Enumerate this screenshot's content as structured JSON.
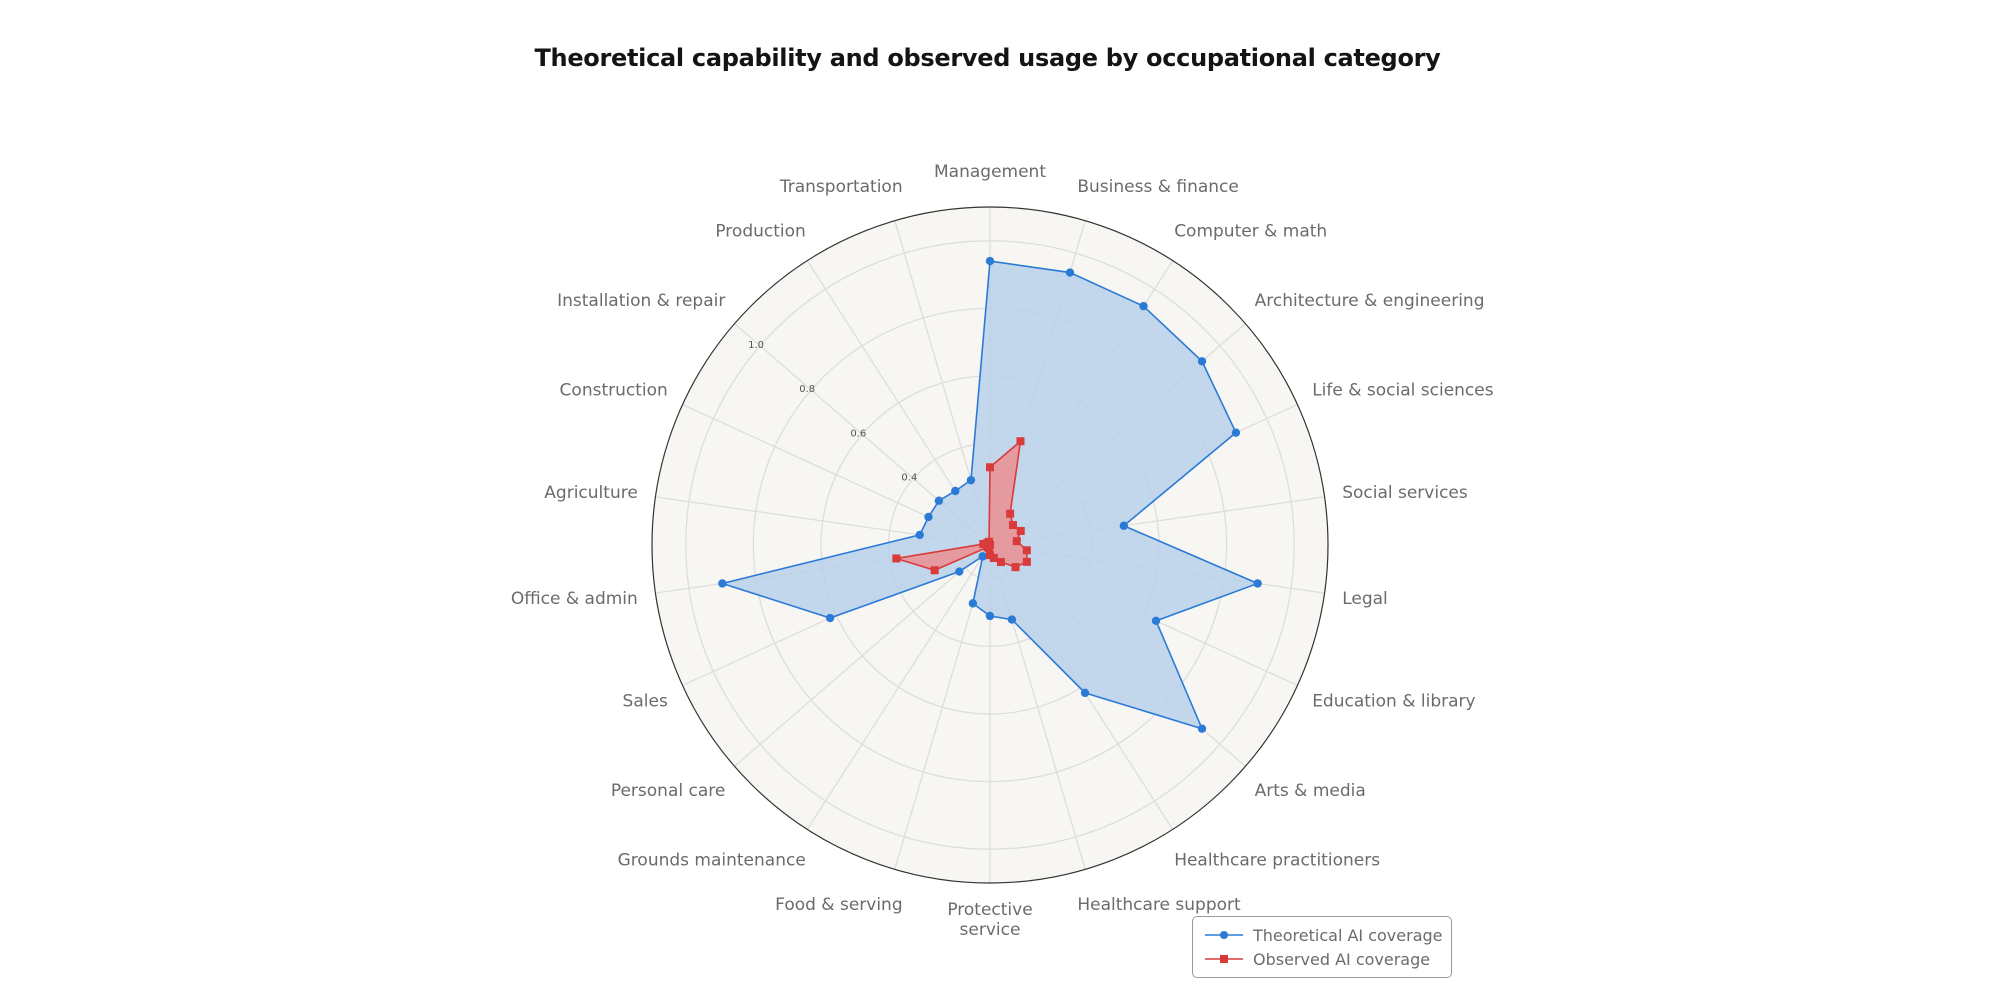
{
  "chart_data": {
    "type": "radar",
    "title": "Theoretical capability and observed usage by occupational category",
    "categories": [
      "Management",
      "Business & finance",
      "Computer & math",
      "Architecture & engineering",
      "Life & social sciences",
      "Social services",
      "Legal",
      "Education & library",
      "Arts & media",
      "Healthcare practitioners",
      "Healthcare support",
      "Protecti​ve service",
      "Food & serving",
      "Grounds maintenance",
      "Personal care",
      "Sales",
      "Office & admin",
      "Agriculture",
      "Construction",
      "Installation & repair",
      "Production",
      "Transportation"
    ],
    "category_lines": [
      [
        "Management"
      ],
      [
        "Business & finance"
      ],
      [
        "Computer & math"
      ],
      [
        "Architecture & engineering"
      ],
      [
        "Life & social sciences"
      ],
      [
        "Social services"
      ],
      [
        "Legal"
      ],
      [
        "Education & library"
      ],
      [
        "Arts & media"
      ],
      [
        "Healthcare practitioners"
      ],
      [
        "Healthcare support"
      ],
      [
        "Protecti​ve",
        "service"
      ],
      [
        "Food & serving"
      ],
      [
        "Grounds maintenance"
      ],
      [
        "Personal care"
      ],
      [
        "Sales"
      ],
      [
        "Office & admin"
      ],
      [
        "Agriculture"
      ],
      [
        "Construction"
      ],
      [
        "Installation & repair"
      ],
      [
        "Production"
      ],
      [
        "Transportation"
      ]
    ],
    "series": [
      {
        "name": "Theoretical AI coverage",
        "color": "#2b7bd6",
        "fill": "#b8d1ea",
        "marker": "circle",
        "values": [
          0.94,
          0.94,
          0.94,
          0.93,
          0.9,
          0.5,
          0.9,
          0.64,
          0.93,
          0.62,
          0.33,
          0.31,
          0.28,
          0.14,
          0.22,
          0.62,
          0.9,
          0.31,
          0.3,
          0.3,
          0.29,
          0.3
        ]
      },
      {
        "name": "Observed AI coverage",
        "color": "#d93b3b",
        "fill": "#ec8b8b",
        "marker": "square",
        "values": [
          0.33,
          0.42,
          0.21,
          0.19,
          0.2,
          0.18,
          0.21,
          0.22,
          0.2,
          0.16,
          0.14,
          0.13,
          0.11,
          0.1,
          0.11,
          0.28,
          0.38,
          0.12,
          0.11,
          0.11,
          0.1,
          0.11
        ]
      }
    ],
    "radial_ticks": [
      0.4,
      0.6,
      0.8,
      1.0
    ],
    "radial_range": [
      0.1,
      1.1
    ],
    "grid": true,
    "legend": "bottom-right"
  }
}
